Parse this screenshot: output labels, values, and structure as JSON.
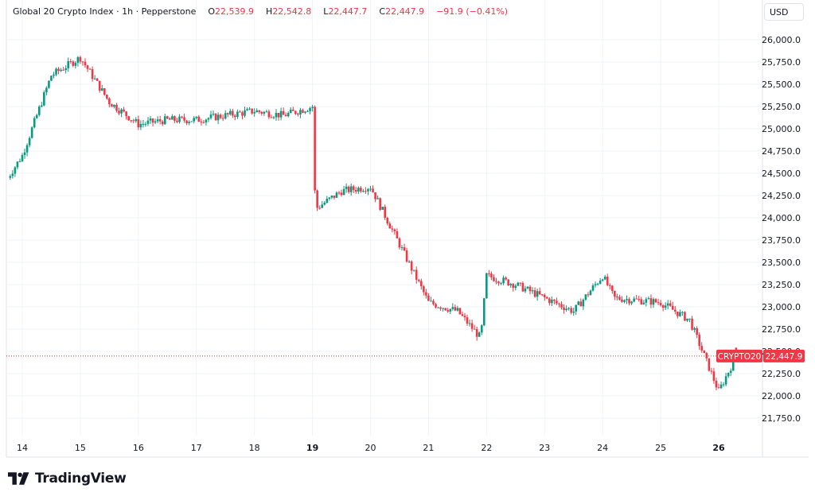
{
  "legend": {
    "symbol_name": "Global 20 Crypto Index",
    "interval": "1h",
    "exchange": "Pepperstone",
    "separator": "·",
    "open_label": "O",
    "open": "22,539.9",
    "high_label": "H",
    "high": "22,542.8",
    "low_label": "L",
    "low": "22,447.7",
    "close_label": "C",
    "close": "22,447.9",
    "change": "−91.9",
    "change_pct": "(−0.41%)"
  },
  "price_scale": {
    "currency": "USD",
    "ticks": [
      "26,000.0",
      "25,750.0",
      "25,500.0",
      "25,250.0",
      "25,000.0",
      "24,750.0",
      "24,500.0",
      "24,250.0",
      "24,000.0",
      "23,750.0",
      "23,500.0",
      "23,250.0",
      "23,000.0",
      "22,750.0",
      "22,500.0",
      "22,250.0",
      "22,000.0",
      "21,750.0"
    ]
  },
  "last_price_label": {
    "ticker": "CRYPTO20",
    "price": "22,447.9"
  },
  "time_scale": {
    "ticks": [
      {
        "label": "14",
        "bold": false
      },
      {
        "label": "15",
        "bold": false
      },
      {
        "label": "16",
        "bold": false
      },
      {
        "label": "17",
        "bold": false
      },
      {
        "label": "18",
        "bold": false
      },
      {
        "label": "19",
        "bold": true
      },
      {
        "label": "20",
        "bold": false
      },
      {
        "label": "21",
        "bold": false
      },
      {
        "label": "22",
        "bold": false
      },
      {
        "label": "23",
        "bold": false
      },
      {
        "label": "24",
        "bold": false
      },
      {
        "label": "25",
        "bold": false
      },
      {
        "label": "26",
        "bold": true
      }
    ]
  },
  "branding": {
    "name": "TradingView"
  },
  "colors": {
    "up": "#089981",
    "down": "#f23645",
    "grid": "#f0f3fa",
    "text": "#131722"
  },
  "chart_data": {
    "type": "candlestick",
    "title": "Global 20 Crypto Index · 1h · Pepperstone",
    "xlabel": "",
    "ylabel": "USD",
    "ylim": [
      21650,
      26200
    ],
    "grid": true,
    "legend_position": "top-left",
    "x_tick_labels": [
      "14",
      "15",
      "16",
      "17",
      "18",
      "19",
      "20",
      "21",
      "22",
      "23",
      "24",
      "25",
      "26"
    ],
    "y_tick_labels": [
      "21,750.0",
      "22,000.0",
      "22,250.0",
      "22,500.0",
      "22,750.0",
      "23,000.0",
      "23,250.0",
      "23,500.0",
      "23,750.0",
      "24,000.0",
      "24,250.0",
      "24,500.0",
      "24,750.0",
      "25,000.0",
      "25,250.0",
      "25,500.0",
      "25,750.0",
      "26,000.0"
    ],
    "last_ohlc": {
      "open": 22539.9,
      "high": 22542.8,
      "low": 22447.7,
      "close": 22447.9,
      "change": -91.9,
      "change_pct": -0.41
    },
    "approx_closes_by_day": [
      {
        "day": "14",
        "price": 24700
      },
      {
        "day": "14.5",
        "price": 25600
      },
      {
        "day": "15",
        "price": 25800
      },
      {
        "day": "15.5",
        "price": 25300
      },
      {
        "day": "16",
        "price": 25050
      },
      {
        "day": "16.5",
        "price": 25100
      },
      {
        "day": "17",
        "price": 25100
      },
      {
        "day": "17.5",
        "price": 25150
      },
      {
        "day": "18",
        "price": 25200
      },
      {
        "day": "18.5",
        "price": 25150
      },
      {
        "day": "19",
        "price": 25250
      },
      {
        "day": "19.05",
        "price": 24100
      },
      {
        "day": "19.5",
        "price": 24300
      },
      {
        "day": "20",
        "price": 24350
      },
      {
        "day": "20.5",
        "price": 23700
      },
      {
        "day": "21",
        "price": 23050
      },
      {
        "day": "21.5",
        "price": 22950
      },
      {
        "day": "21.9",
        "price": 22650
      },
      {
        "day": "22",
        "price": 23350
      },
      {
        "day": "22.5",
        "price": 23250
      },
      {
        "day": "23",
        "price": 23100
      },
      {
        "day": "23.5",
        "price": 22950
      },
      {
        "day": "24",
        "price": 23350
      },
      {
        "day": "24.2",
        "price": 23100
      },
      {
        "day": "25",
        "price": 23050
      },
      {
        "day": "25.5",
        "price": 22850
      },
      {
        "day": "26",
        "price": 22050
      },
      {
        "day": "26.3",
        "price": 22448
      }
    ]
  }
}
